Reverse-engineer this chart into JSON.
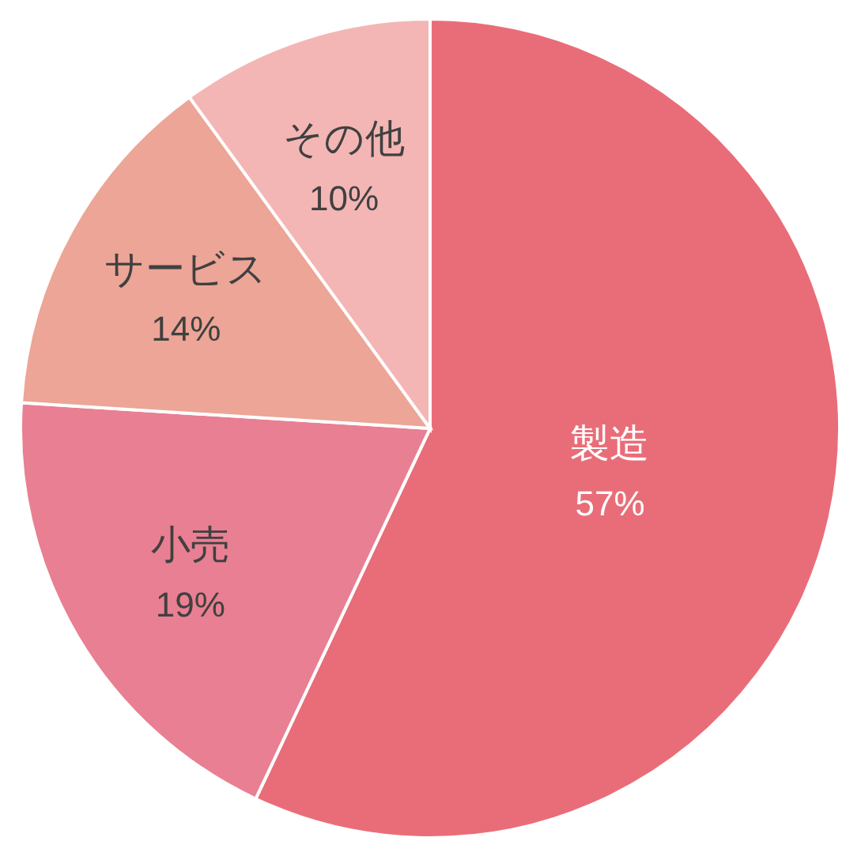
{
  "chart_data": {
    "type": "pie",
    "categories": [
      "製造",
      "小売",
      "サービス",
      "その他"
    ],
    "values": [
      57,
      19,
      14,
      10
    ],
    "value_labels": [
      "57%",
      "19%",
      "14%",
      "10%"
    ],
    "colors": [
      "#e96d78",
      "#e97f92",
      "#eca596",
      "#f3b6b4"
    ],
    "legend": false
  }
}
